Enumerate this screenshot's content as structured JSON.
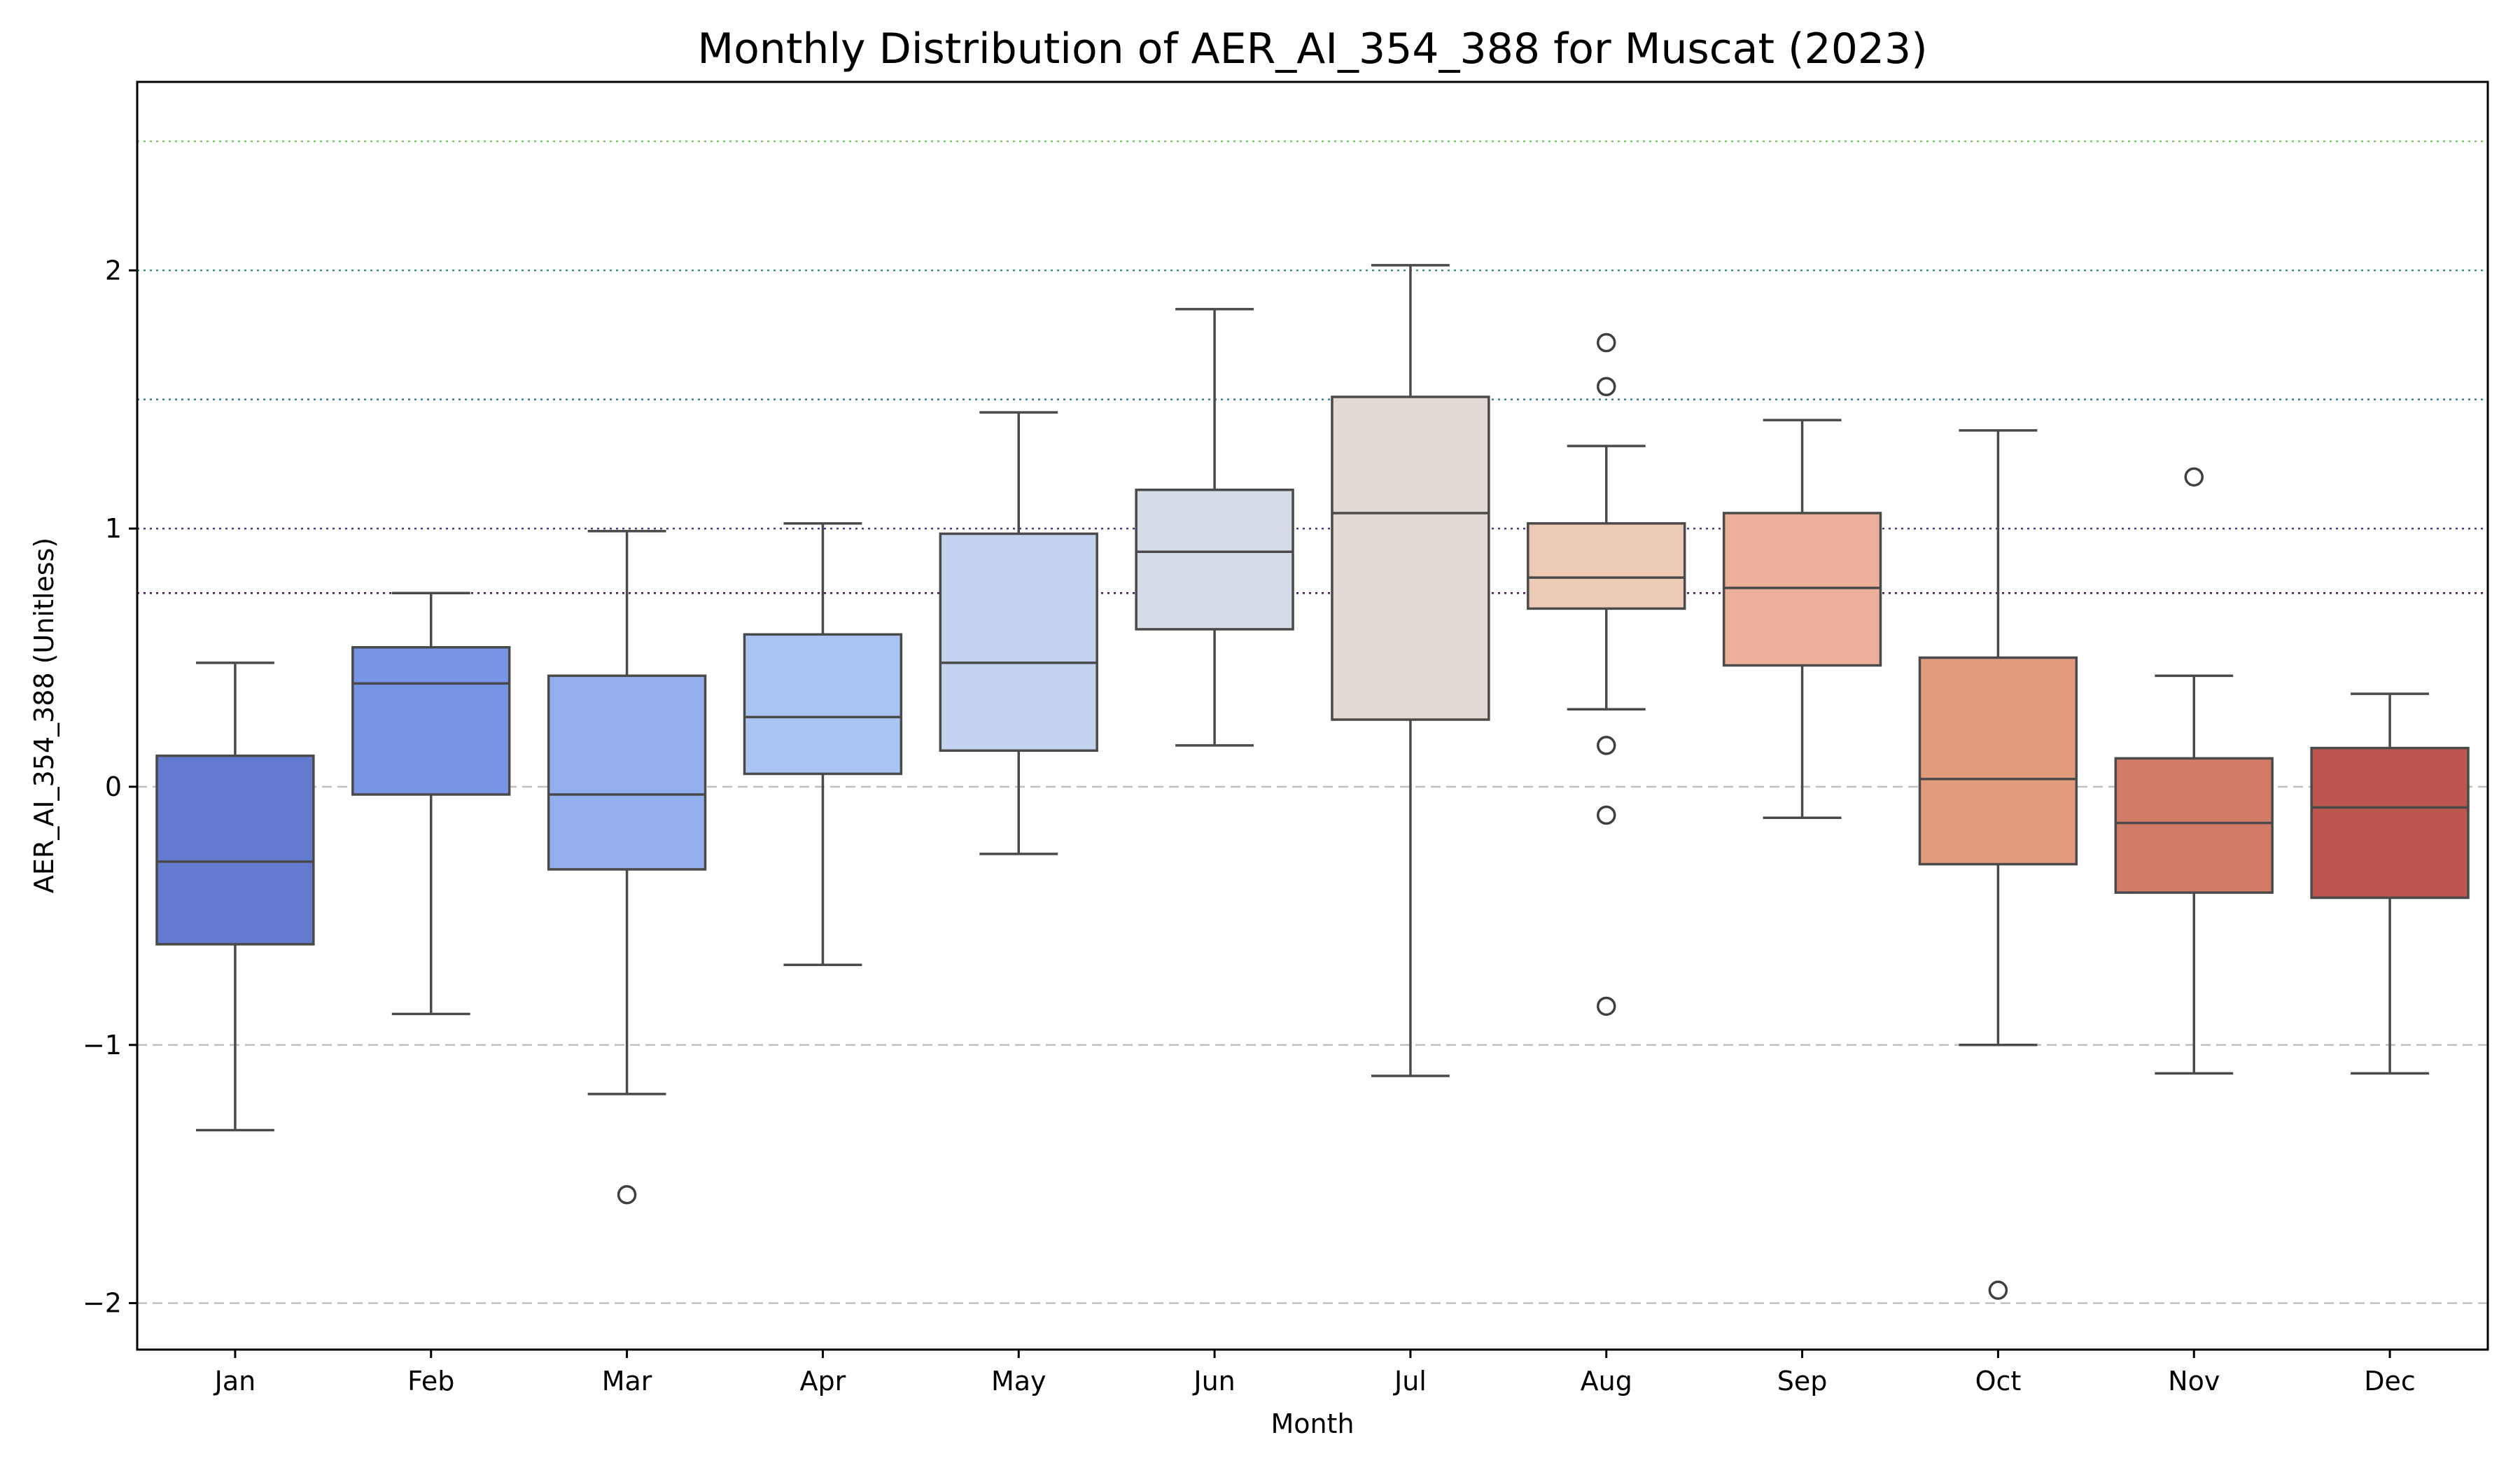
{
  "chart_data": {
    "type": "box",
    "title": "Monthly Distribution of AER_AI_354_388 for Muscat (2023)",
    "xlabel": "Month",
    "ylabel": "AER_AI_354_388 (Unitless)",
    "ylim": [
      -2.18,
      2.73
    ],
    "yticks": [
      -2,
      -1,
      0,
      1,
      2
    ],
    "ytick_labels": [
      "−2",
      "−1",
      "0",
      "1",
      "2"
    ],
    "categories": [
      "Jan",
      "Feb",
      "Mar",
      "Apr",
      "May",
      "Jun",
      "Jul",
      "Aug",
      "Sep",
      "Oct",
      "Nov",
      "Dec"
    ],
    "boxes": [
      {
        "month": "Jan",
        "whisker_low": -1.33,
        "q1": -0.61,
        "median": -0.29,
        "q3": 0.12,
        "whisker_high": 0.48,
        "outliers": [],
        "color": "#6479d0"
      },
      {
        "month": "Feb",
        "whisker_low": -0.88,
        "q1": -0.03,
        "median": 0.4,
        "q3": 0.54,
        "whisker_high": 0.75,
        "outliers": [],
        "color": "#7894e4"
      },
      {
        "month": "Mar",
        "whisker_low": -1.19,
        "q1": -0.32,
        "median": -0.03,
        "q3": 0.43,
        "whisker_high": 0.99,
        "outliers": [
          -1.58
        ],
        "color": "#93afed"
      },
      {
        "month": "Apr",
        "whisker_low": -0.69,
        "q1": 0.05,
        "median": 0.27,
        "q3": 0.59,
        "whisker_high": 1.02,
        "outliers": [],
        "color": "#aac4f4"
      },
      {
        "month": "May",
        "whisker_low": -0.26,
        "q1": 0.14,
        "median": 0.48,
        "q3": 0.98,
        "whisker_high": 1.45,
        "outliers": [],
        "color": "#c3d3ef"
      },
      {
        "month": "Jun",
        "whisker_low": 0.16,
        "q1": 0.61,
        "median": 0.91,
        "q3": 1.15,
        "whisker_high": 1.85,
        "outliers": [],
        "color": "#d5dce8"
      },
      {
        "month": "Jul",
        "whisker_low": -1.12,
        "q1": 0.26,
        "median": 1.06,
        "q3": 1.51,
        "whisker_high": 2.02,
        "outliers": [],
        "color": "#e3d9d3"
      },
      {
        "month": "Aug",
        "whisker_low": 0.3,
        "q1": 0.69,
        "median": 0.81,
        "q3": 1.02,
        "whisker_high": 1.32,
        "outliers": [
          1.72,
          1.55,
          0.16,
          -0.11,
          -0.85
        ],
        "color": "#eccab5"
      },
      {
        "month": "Sep",
        "whisker_low": -0.12,
        "q1": 0.47,
        "median": 0.77,
        "q3": 1.06,
        "whisker_high": 1.42,
        "outliers": [],
        "color": "#ecb09a"
      },
      {
        "month": "Oct",
        "whisker_low": -1.0,
        "q1": -0.3,
        "median": 0.03,
        "q3": 0.5,
        "whisker_high": 1.38,
        "outliers": [
          -1.95
        ],
        "color": "#e39b7e"
      },
      {
        "month": "Nov",
        "whisker_low": -1.11,
        "q1": -0.41,
        "median": -0.14,
        "q3": 0.11,
        "whisker_high": 0.43,
        "outliers": [
          1.2
        ],
        "color": "#d27c67"
      },
      {
        "month": "Dec",
        "whisker_low": -1.11,
        "q1": -0.43,
        "median": -0.08,
        "q3": 0.15,
        "whisker_high": 0.36,
        "outliers": [],
        "color": "#bb574f"
      }
    ],
    "reference_lines": [
      {
        "y": 2.5,
        "style": "dotted",
        "color": "#7ccd6a"
      },
      {
        "y": 2.0,
        "style": "dotted",
        "color": "#3a9a7e"
      },
      {
        "y": 1.5,
        "style": "dotted",
        "color": "#3b7b9d"
      },
      {
        "y": 1.0,
        "style": "dotted",
        "color": "#3a3f8a"
      },
      {
        "y": 0.75,
        "style": "dotted",
        "color": "#3b0f4e"
      },
      {
        "y": 0,
        "style": "dashed",
        "color": "#c0c0c0"
      },
      {
        "y": -1,
        "style": "dashed",
        "color": "#c0c0c0"
      },
      {
        "y": -2,
        "style": "dashed",
        "color": "#c0c0c0"
      }
    ],
    "grid": false,
    "legend": "none"
  }
}
